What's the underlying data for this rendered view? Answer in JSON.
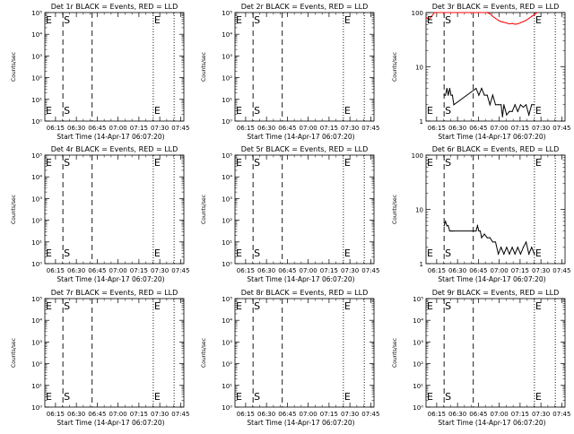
{
  "chart_data": [
    {
      "type": "line",
      "title": "Det 1r BLACK = Events, RED = LLD",
      "ylabel": "Counts/sec",
      "xlabel": "Start Time (14-Apr-17 06:07:20)",
      "yscale": "log",
      "ylim": [
        1,
        100000
      ],
      "ytick_labels": [
        "10⁰",
        "10¹",
        "10²",
        "10³",
        "10⁴",
        "10⁵"
      ],
      "grid": false,
      "xlim_min": [
        0,
        100
      ],
      "xtick_labels": [
        "06:15",
        "06:30",
        "06:45",
        "07:00",
        "07:15",
        "07:30",
        "07:45"
      ],
      "markers": [
        {
          "label": "E",
          "x_min": 0,
          "style": "dotted"
        },
        {
          "label": "S",
          "x_min": 13,
          "style": "dashed"
        },
        {
          "label": "",
          "x_min": 34,
          "style": "dashed"
        },
        {
          "label": "E",
          "x_min": 78,
          "style": "dotted"
        },
        {
          "label": "",
          "x_min": 93,
          "style": "dotted"
        }
      ],
      "series": []
    },
    {
      "type": "line",
      "title": "Det 2r BLACK = Events, RED = LLD",
      "ylabel": "Counts/sec",
      "xlabel": "Start Time (14-Apr-17 06:07:20)",
      "yscale": "log",
      "ylim": [
        1,
        100000
      ],
      "ytick_labels": [
        "10⁰",
        "10¹",
        "10²",
        "10³",
        "10⁴",
        "10⁵"
      ],
      "grid": false,
      "xlim_min": [
        0,
        100
      ],
      "xtick_labels": [
        "06:15",
        "06:30",
        "06:45",
        "07:00",
        "07:15",
        "07:30",
        "07:45"
      ],
      "markers": [
        {
          "label": "E",
          "x_min": 0,
          "style": "dotted"
        },
        {
          "label": "S",
          "x_min": 13,
          "style": "dashed"
        },
        {
          "label": "",
          "x_min": 34,
          "style": "dashed"
        },
        {
          "label": "E",
          "x_min": 78,
          "style": "dotted"
        },
        {
          "label": "",
          "x_min": 93,
          "style": "dotted"
        }
      ],
      "series": []
    },
    {
      "type": "line",
      "title": "Det 3r BLACK = Events, RED = LLD",
      "ylabel": "Counts/sec",
      "xlabel": "Start Time (14-Apr-17 06:07:20)",
      "yscale": "log",
      "ylim": [
        1,
        100
      ],
      "ytick_labels": [
        "1",
        "10",
        "100"
      ],
      "grid": false,
      "xlim_min": [
        0,
        100
      ],
      "xtick_labels": [
        "06:15",
        "06:30",
        "06:45",
        "07:00",
        "07:15",
        "07:30",
        "07:45"
      ],
      "markers": [
        {
          "label": "E",
          "x_min": 0,
          "style": "dotted"
        },
        {
          "label": "S",
          "x_min": 13,
          "style": "dashed"
        },
        {
          "label": "",
          "x_min": 34,
          "style": "dashed"
        },
        {
          "label": "E",
          "x_min": 78,
          "style": "dotted"
        },
        {
          "label": "",
          "x_min": 93,
          "style": "dotted"
        }
      ],
      "series": [
        {
          "color": "#000000",
          "points": [
            [
              13,
              3
            ],
            [
              14,
              3
            ],
            [
              15,
              4
            ],
            [
              16,
              3
            ],
            [
              17,
              4
            ],
            [
              18,
              3
            ],
            [
              19,
              3
            ],
            [
              20,
              2
            ],
            [
              36,
              4
            ],
            [
              38,
              3
            ],
            [
              40,
              4
            ],
            [
              42,
              3
            ],
            [
              44,
              3
            ],
            [
              46,
              2
            ],
            [
              48,
              3
            ],
            [
              50,
              2
            ],
            [
              52,
              2
            ],
            [
              54,
              2
            ],
            [
              55,
              1.2
            ],
            [
              56,
              2
            ],
            [
              58,
              1.3
            ],
            [
              60,
              1.5
            ],
            [
              62,
              1.5
            ],
            [
              64,
              2
            ],
            [
              66,
              1.5
            ],
            [
              68,
              2
            ],
            [
              70,
              1.8
            ],
            [
              72,
              2
            ],
            [
              74,
              1.3
            ],
            [
              76,
              2
            ],
            [
              78,
              2
            ]
          ]
        },
        {
          "color": "#ff0000",
          "points": [
            [
              0,
              80
            ],
            [
              2,
              75
            ],
            [
              4,
              85
            ],
            [
              6,
              100
            ],
            [
              8,
              100
            ],
            [
              44,
              100
            ],
            [
              46,
              95
            ],
            [
              48,
              85
            ],
            [
              50,
              78
            ],
            [
              52,
              72
            ],
            [
              54,
              68
            ],
            [
              56,
              66
            ],
            [
              58,
              64
            ],
            [
              60,
              62
            ],
            [
              62,
              63
            ],
            [
              64,
              61
            ],
            [
              66,
              62
            ],
            [
              68,
              65
            ],
            [
              70,
              68
            ],
            [
              72,
              72
            ],
            [
              74,
              78
            ],
            [
              76,
              85
            ],
            [
              78,
              92
            ],
            [
              80,
              100
            ]
          ]
        }
      ]
    },
    {
      "type": "line",
      "title": "Det 4r BLACK = Events, RED = LLD",
      "ylabel": "Counts/sec",
      "xlabel": "Start Time (14-Apr-17 06:07:20)",
      "yscale": "log",
      "ylim": [
        1,
        100000
      ],
      "ytick_labels": [
        "10⁰",
        "10¹",
        "10²",
        "10³",
        "10⁴",
        "10⁵"
      ],
      "grid": false,
      "xlim_min": [
        0,
        100
      ],
      "xtick_labels": [
        "06:15",
        "06:30",
        "06:45",
        "07:00",
        "07:15",
        "07:30",
        "07:45"
      ],
      "markers": [
        {
          "label": "E",
          "x_min": 0,
          "style": "dotted"
        },
        {
          "label": "S",
          "x_min": 13,
          "style": "dashed"
        },
        {
          "label": "",
          "x_min": 34,
          "style": "dashed"
        },
        {
          "label": "E",
          "x_min": 78,
          "style": "dotted"
        },
        {
          "label": "",
          "x_min": 93,
          "style": "dotted"
        }
      ],
      "series": []
    },
    {
      "type": "line",
      "title": "Det 5r BLACK = Events, RED = LLD",
      "ylabel": "Counts/sec",
      "xlabel": "Start Time (14-Apr-17 06:07:20)",
      "yscale": "log",
      "ylim": [
        1,
        100000
      ],
      "ytick_labels": [
        "10⁰",
        "10¹",
        "10²",
        "10³",
        "10⁴",
        "10⁵"
      ],
      "grid": false,
      "xlim_min": [
        0,
        100
      ],
      "xtick_labels": [
        "06:15",
        "06:30",
        "06:45",
        "07:00",
        "07:15",
        "07:30",
        "07:45"
      ],
      "markers": [
        {
          "label": "E",
          "x_min": 0,
          "style": "dotted"
        },
        {
          "label": "S",
          "x_min": 13,
          "style": "dashed"
        },
        {
          "label": "",
          "x_min": 34,
          "style": "dashed"
        },
        {
          "label": "E",
          "x_min": 78,
          "style": "dotted"
        },
        {
          "label": "",
          "x_min": 93,
          "style": "dotted"
        }
      ],
      "series": []
    },
    {
      "type": "line",
      "title": "Det 6r BLACK = Events, RED = LLD",
      "ylabel": "Counts/sec",
      "xlabel": "Start Time (14-Apr-17 06:07:20)",
      "yscale": "log",
      "ylim": [
        1,
        100
      ],
      "ytick_labels": [
        "1",
        "10",
        "100"
      ],
      "grid": false,
      "xlim_min": [
        0,
        100
      ],
      "xtick_labels": [
        "06:15",
        "06:30",
        "06:45",
        "07:00",
        "07:15",
        "07:30",
        "07:45"
      ],
      "markers": [
        {
          "label": "E",
          "x_min": 0,
          "style": "dotted"
        },
        {
          "label": "S",
          "x_min": 13,
          "style": "dashed"
        },
        {
          "label": "",
          "x_min": 34,
          "style": "dashed"
        },
        {
          "label": "E",
          "x_min": 78,
          "style": "dotted"
        },
        {
          "label": "",
          "x_min": 93,
          "style": "dotted"
        }
      ],
      "series": [
        {
          "color": "#000000",
          "points": [
            [
              13,
              5
            ],
            [
              14,
              6
            ],
            [
              15,
              5
            ],
            [
              16,
              5
            ],
            [
              17,
              4
            ],
            [
              18,
              4
            ],
            [
              19,
              4
            ],
            [
              20,
              4
            ],
            [
              36,
              4
            ],
            [
              37,
              5
            ],
            [
              38,
              4
            ],
            [
              39,
              4
            ],
            [
              40,
              3
            ],
            [
              42,
              3.5
            ],
            [
              44,
              3
            ],
            [
              46,
              3
            ],
            [
              48,
              2.5
            ],
            [
              50,
              2.5
            ],
            [
              52,
              1.5
            ],
            [
              54,
              2
            ],
            [
              56,
              1.5
            ],
            [
              58,
              2
            ],
            [
              60,
              1.5
            ],
            [
              62,
              2
            ],
            [
              64,
              1.5
            ],
            [
              66,
              2
            ],
            [
              68,
              1.5
            ],
            [
              70,
              2
            ],
            [
              72,
              2.5
            ],
            [
              74,
              1.5
            ],
            [
              76,
              2
            ],
            [
              78,
              1.5
            ]
          ]
        }
      ]
    },
    {
      "type": "line",
      "title": "Det 7r BLACK = Events, RED = LLD",
      "ylabel": "Counts/sec",
      "xlabel": "Start Time (14-Apr-17 06:07:20)",
      "yscale": "log",
      "ylim": [
        1,
        100000
      ],
      "ytick_labels": [
        "10⁰",
        "10¹",
        "10²",
        "10³",
        "10⁴",
        "10⁵"
      ],
      "grid": false,
      "xlim_min": [
        0,
        100
      ],
      "xtick_labels": [
        "06:15",
        "06:30",
        "06:45",
        "07:00",
        "07:15",
        "07:30",
        "07:45"
      ],
      "markers": [
        {
          "label": "E",
          "x_min": 0,
          "style": "dotted"
        },
        {
          "label": "S",
          "x_min": 13,
          "style": "dashed"
        },
        {
          "label": "",
          "x_min": 34,
          "style": "dashed"
        },
        {
          "label": "E",
          "x_min": 78,
          "style": "dotted"
        },
        {
          "label": "",
          "x_min": 93,
          "style": "dotted"
        }
      ],
      "series": []
    },
    {
      "type": "line",
      "title": "Det 8r BLACK = Events, RED = LLD",
      "ylabel": "Counts/sec",
      "xlabel": "Start Time (14-Apr-17 06:07:20)",
      "yscale": "log",
      "ylim": [
        1,
        100000
      ],
      "ytick_labels": [
        "10⁰",
        "10¹",
        "10²",
        "10³",
        "10⁴",
        "10⁵"
      ],
      "grid": false,
      "xlim_min": [
        0,
        100
      ],
      "xtick_labels": [
        "06:15",
        "06:30",
        "06:45",
        "07:00",
        "07:15",
        "07:30",
        "07:45"
      ],
      "markers": [
        {
          "label": "E",
          "x_min": 0,
          "style": "dotted"
        },
        {
          "label": "S",
          "x_min": 13,
          "style": "dashed"
        },
        {
          "label": "",
          "x_min": 34,
          "style": "dashed"
        },
        {
          "label": "E",
          "x_min": 78,
          "style": "dotted"
        },
        {
          "label": "",
          "x_min": 93,
          "style": "dotted"
        }
      ],
      "series": []
    },
    {
      "type": "line",
      "title": "Det 9r BLACK = Events, RED = LLD",
      "ylabel": "Counts/sec",
      "xlabel": "Start Time (14-Apr-17 06:07:20)",
      "yscale": "log",
      "ylim": [
        1,
        100000
      ],
      "ytick_labels": [
        "10⁰",
        "10¹",
        "10²",
        "10³",
        "10⁴",
        "10⁵"
      ],
      "grid": false,
      "xlim_min": [
        0,
        100
      ],
      "xtick_labels": [
        "06:15",
        "06:30",
        "06:45",
        "07:00",
        "07:15",
        "07:30",
        "07:45"
      ],
      "markers": [
        {
          "label": "E",
          "x_min": 0,
          "style": "dotted"
        },
        {
          "label": "S",
          "x_min": 13,
          "style": "dashed"
        },
        {
          "label": "",
          "x_min": 34,
          "style": "dashed"
        },
        {
          "label": "E",
          "x_min": 78,
          "style": "dotted"
        },
        {
          "label": "",
          "x_min": 93,
          "style": "dotted"
        }
      ],
      "series": []
    }
  ]
}
